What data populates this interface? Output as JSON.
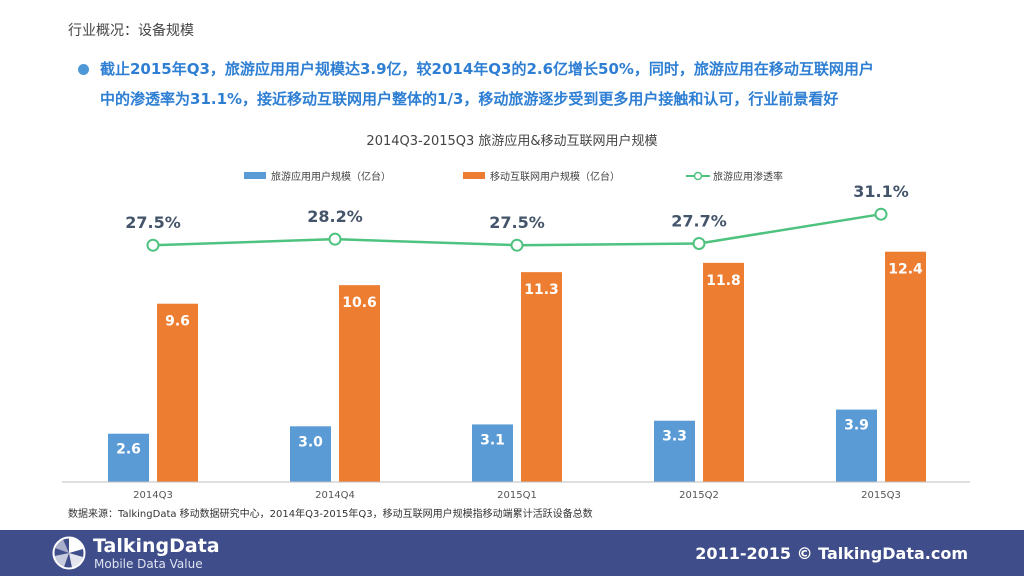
{
  "breadcrumb": "行业概况：设备规模",
  "summary": {
    "line1": "截止2015年Q3，旅游应用用户规模达3.9亿，较2014年Q3的2.6亿增长50%，同时，旅游应用在移动互联网用户",
    "line2": "中的渗透率为31.1%，接近移动互联网用户整体的1/3，移动旅游逐步受到更多用户接触和认可，行业前景看好"
  },
  "colors": {
    "travel_bar": "#5b9bd5",
    "mobile_bar": "#ed7d31",
    "penetration_line": "#4ec27f",
    "summary_text": "#2e7fd4",
    "footer_bg": "#3f4d8a"
  },
  "chart_data": {
    "type": "bar",
    "title": "2014Q3-2015Q3 旅游应用&移动互联网用户规模",
    "categories": [
      "2014Q3",
      "2014Q4",
      "2015Q1",
      "2015Q2",
      "2015Q3"
    ],
    "series": [
      {
        "name": "旅游应用用户规模（亿台）",
        "kind": "bar",
        "values": [
          2.6,
          3.0,
          3.1,
          3.3,
          3.9
        ],
        "labels": [
          "2.6",
          "3.0",
          "3.1",
          "3.3",
          "3.9"
        ]
      },
      {
        "name": "移动互联网用户规模（亿台）",
        "kind": "bar",
        "values": [
          9.6,
          10.6,
          11.3,
          11.8,
          12.4
        ],
        "labels": [
          "9.6",
          "10.6",
          "11.3",
          "11.8",
          "12.4"
        ]
      },
      {
        "name": "旅游应用渗透率",
        "kind": "line",
        "axis": "secondary",
        "values": [
          27.5,
          28.2,
          27.5,
          27.7,
          31.1
        ],
        "labels": [
          "27.5%",
          "28.2%",
          "27.5%",
          "27.7%",
          "31.1%"
        ]
      }
    ],
    "ylim": [
      0,
      14
    ],
    "y2lim": [
      0,
      36
    ],
    "grid": false,
    "legend": "top"
  },
  "source_note": "数据来源：TalkingData 移动数据研究中心，2014年Q3-2015年Q3，移动互联网用户规模指移动端累计活跃设备总数",
  "footer": {
    "brand": "TalkingData",
    "tagline": "Mobile Data Value",
    "copyright": "2011-2015 © TalkingData.com",
    "logo_icon": "talkingdata-logo-icon"
  }
}
